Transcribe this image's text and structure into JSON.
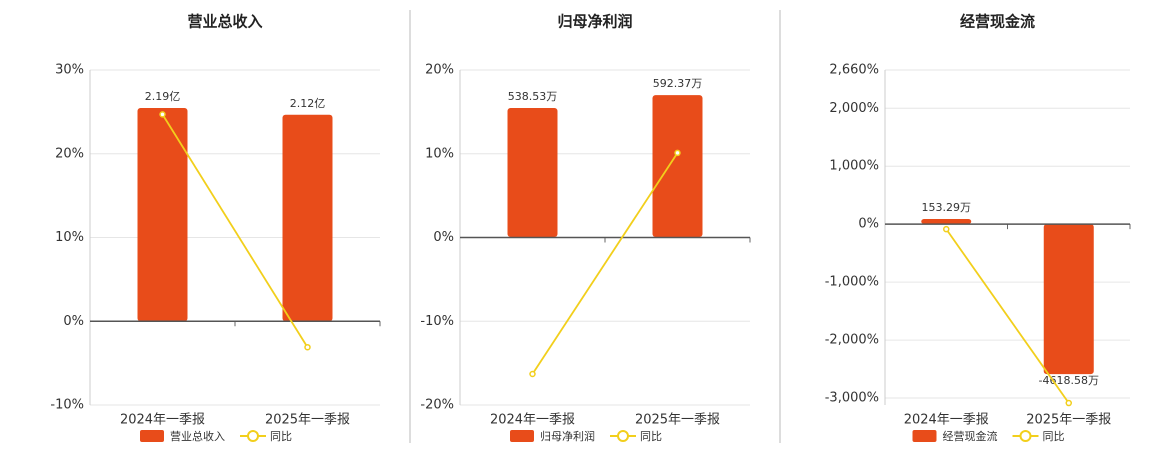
{
  "chart_data": [
    {
      "type": "bar",
      "title": "营业总收入",
      "categories": [
        "2024年一季报",
        "2025年一季报"
      ],
      "series": [
        {
          "name": "营业总收入",
          "type": "bar",
          "axis": "y2",
          "color": "#e84c1a",
          "values": [
            2.19,
            2.12
          ],
          "value_labels": [
            "2.19亿",
            "2.12亿"
          ]
        },
        {
          "name": "同比",
          "type": "line",
          "color": "#f2cf1c",
          "values": [
            24.7,
            -3.1
          ]
        }
      ],
      "ylim": [
        -10,
        30
      ],
      "yticks": [
        {
          "value": -10,
          "label": "-10%"
        },
        {
          "value": 0,
          "label": "0%"
        },
        {
          "value": 10,
          "label": "10%"
        },
        {
          "value": 20,
          "label": "20%"
        },
        {
          "value": 30,
          "label": "30%"
        }
      ],
      "y2lim": [
        -0.86,
        2.58
      ],
      "grid": true
    },
    {
      "type": "bar",
      "title": "归母净利润",
      "categories": [
        "2024年一季报",
        "2025年一季报"
      ],
      "series": [
        {
          "name": "归母净利润",
          "type": "bar",
          "axis": "y2",
          "color": "#e84c1a",
          "values": [
            538.53,
            592.37
          ],
          "value_labels": [
            "538.53万",
            "592.37万"
          ]
        },
        {
          "name": "同比",
          "type": "line",
          "color": "#f2cf1c",
          "values": [
            -16.3,
            10.1
          ]
        }
      ],
      "ylim": [
        -20,
        20
      ],
      "yticks": [
        {
          "value": -20,
          "label": "-20%"
        },
        {
          "value": -10,
          "label": "-10%"
        },
        {
          "value": 0,
          "label": "0%"
        },
        {
          "value": 10,
          "label": "10%"
        },
        {
          "value": 20,
          "label": "20%"
        }
      ],
      "y2lim": [
        -701,
        697
      ],
      "grid": true
    },
    {
      "type": "bar",
      "title": "经营现金流",
      "categories": [
        "2024年一季报",
        "2025年一季报"
      ],
      "series": [
        {
          "name": "经营现金流",
          "type": "bar",
          "axis": "y2",
          "color": "#e84c1a",
          "values": [
            153.29,
            -4618.58
          ],
          "value_labels": [
            "153.29万",
            "-4618.58万"
          ]
        },
        {
          "name": "同比",
          "type": "line",
          "color": "#f2cf1c",
          "values": [
            -86,
            -3086
          ]
        }
      ],
      "ylim": [
        -3120,
        2660
      ],
      "yticks": [
        {
          "value": -3000,
          "label": "-3,000%"
        },
        {
          "value": -2000,
          "label": "-2,000%"
        },
        {
          "value": -1000,
          "label": "-1,000%"
        },
        {
          "value": 0,
          "label": "0%"
        },
        {
          "value": 1000,
          "label": "1,000%"
        },
        {
          "value": 2000,
          "label": "2,000%"
        },
        {
          "value": 2660,
          "label": "2,660%"
        }
      ],
      "y2lim": [
        -5570,
        4741
      ],
      "grid": true
    }
  ]
}
